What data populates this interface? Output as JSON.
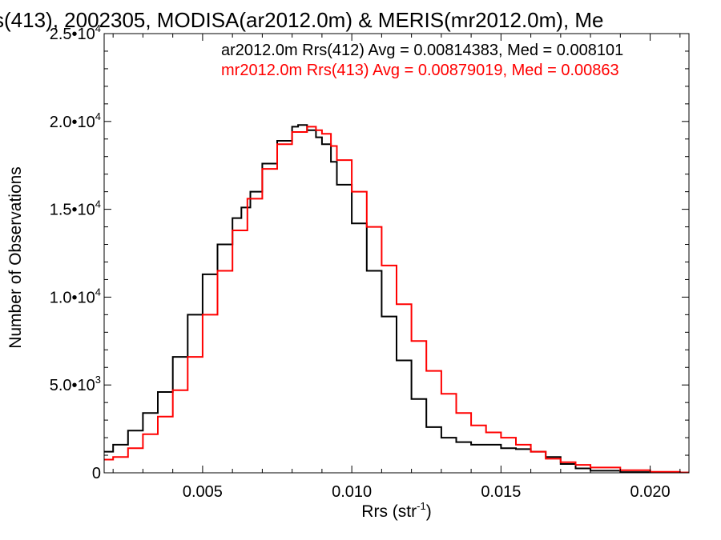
{
  "chart_data": {
    "type": "line",
    "title": "s(413), 2002305, MODISA(ar2012.0m) & MERIS(mr2012.0m), Me",
    "xlabel": "Rrs (str",
    "xlabel_sup": "-1",
    "xlabel_tail": ")",
    "ylabel": "Number of Observations",
    "xlim": [
      0.0017,
      0.0213
    ],
    "ylim": [
      0,
      25000
    ],
    "x_ticks": [
      {
        "value": 0.005,
        "label": "0.005"
      },
      {
        "value": 0.01,
        "label": "0.010"
      },
      {
        "value": 0.015,
        "label": "0.015"
      },
      {
        "value": 0.02,
        "label": "0.020"
      }
    ],
    "y_ticks": [
      {
        "value": 0,
        "mantissa": "0",
        "exp": ""
      },
      {
        "value": 5000,
        "mantissa": "5.0•10",
        "exp": "3"
      },
      {
        "value": 10000,
        "mantissa": "1.0•10",
        "exp": "4"
      },
      {
        "value": 15000,
        "mantissa": "1.5•10",
        "exp": "4"
      },
      {
        "value": 20000,
        "mantissa": "2.0•10",
        "exp": "4"
      },
      {
        "value": 25000,
        "mantissa": "2.5•10",
        "exp": "4"
      }
    ],
    "grid": false,
    "legend_position": "top-right",
    "series": [
      {
        "name": "ar2012.0m Rrs(412) Avg = 0.00814383, Med = 0.008101",
        "color": "#000000",
        "step": true,
        "points": [
          [
            0.0017,
            1200
          ],
          [
            0.002,
            1600
          ],
          [
            0.0025,
            2400
          ],
          [
            0.003,
            3400
          ],
          [
            0.0035,
            4600
          ],
          [
            0.004,
            6600
          ],
          [
            0.0045,
            9000
          ],
          [
            0.005,
            11300
          ],
          [
            0.0055,
            13000
          ],
          [
            0.006,
            14500
          ],
          [
            0.0063,
            15100
          ],
          [
            0.0066,
            16000
          ],
          [
            0.007,
            17600
          ],
          [
            0.0075,
            18900
          ],
          [
            0.008,
            19700
          ],
          [
            0.0082,
            19800
          ],
          [
            0.0085,
            19500
          ],
          [
            0.0088,
            19100
          ],
          [
            0.009,
            18700
          ],
          [
            0.0093,
            17700
          ],
          [
            0.0095,
            16400
          ],
          [
            0.01,
            14200
          ],
          [
            0.0105,
            11500
          ],
          [
            0.011,
            8900
          ],
          [
            0.0115,
            6400
          ],
          [
            0.012,
            4200
          ],
          [
            0.0125,
            2600
          ],
          [
            0.013,
            2000
          ],
          [
            0.0135,
            1750
          ],
          [
            0.014,
            1600
          ],
          [
            0.015,
            1400
          ],
          [
            0.0155,
            1350
          ],
          [
            0.016,
            1200
          ],
          [
            0.0165,
            900
          ],
          [
            0.017,
            500
          ],
          [
            0.0175,
            250
          ],
          [
            0.018,
            120
          ],
          [
            0.019,
            40
          ],
          [
            0.02,
            15
          ],
          [
            0.0213,
            0
          ]
        ]
      },
      {
        "name": "mr2012.0m Rrs(413) Avg = 0.00879019, Med = 0.00863",
        "color": "#ff0000",
        "step": true,
        "points": [
          [
            0.0017,
            750
          ],
          [
            0.002,
            900
          ],
          [
            0.0025,
            1400
          ],
          [
            0.003,
            2200
          ],
          [
            0.0035,
            3200
          ],
          [
            0.004,
            4700
          ],
          [
            0.0045,
            6600
          ],
          [
            0.005,
            9000
          ],
          [
            0.0055,
            11500
          ],
          [
            0.006,
            13800
          ],
          [
            0.0065,
            15600
          ],
          [
            0.007,
            17300
          ],
          [
            0.0075,
            18700
          ],
          [
            0.008,
            19400
          ],
          [
            0.0085,
            19700
          ],
          [
            0.0088,
            19500
          ],
          [
            0.009,
            19300
          ],
          [
            0.0093,
            18600
          ],
          [
            0.0095,
            17800
          ],
          [
            0.01,
            16000
          ],
          [
            0.0105,
            14000
          ],
          [
            0.011,
            11800
          ],
          [
            0.0115,
            9600
          ],
          [
            0.012,
            7500
          ],
          [
            0.0125,
            5800
          ],
          [
            0.013,
            4500
          ],
          [
            0.0135,
            3400
          ],
          [
            0.014,
            2700
          ],
          [
            0.0145,
            2300
          ],
          [
            0.015,
            2000
          ],
          [
            0.0155,
            1600
          ],
          [
            0.016,
            1200
          ],
          [
            0.0165,
            800
          ],
          [
            0.017,
            600
          ],
          [
            0.0175,
            450
          ],
          [
            0.018,
            300
          ],
          [
            0.019,
            150
          ],
          [
            0.02,
            60
          ],
          [
            0.021,
            20
          ],
          [
            0.0213,
            0
          ]
        ]
      }
    ]
  }
}
